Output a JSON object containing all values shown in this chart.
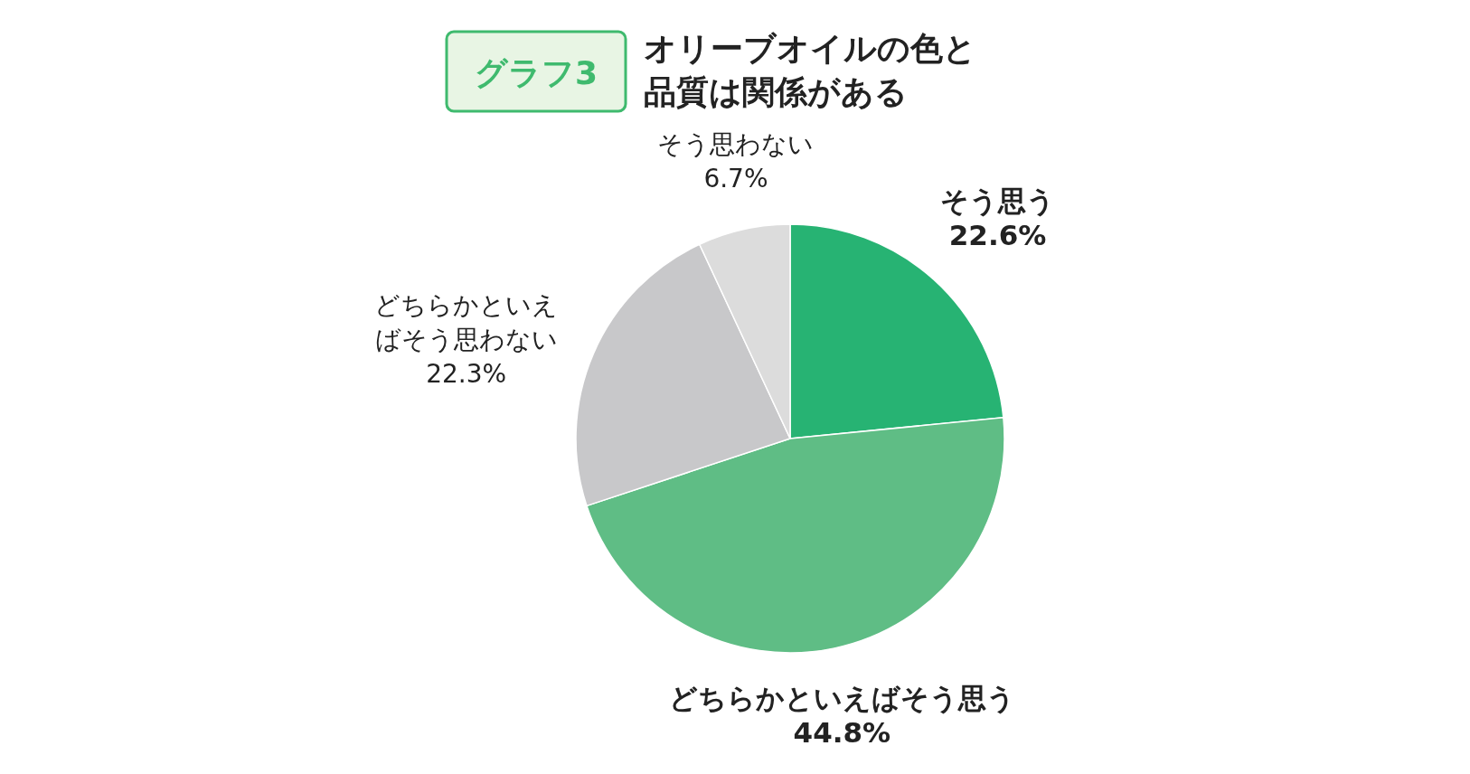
{
  "chart_data": {
    "type": "pie",
    "subtitle": "グラフ3",
    "title": "オリーブオイルの色と品質は関係がある",
    "categories": [
      "そう思う",
      "どちらかといえばそう思う",
      "どちらかといえばそう思わない",
      "そう思わない"
    ],
    "values": [
      22.6,
      44.8,
      22.3,
      6.7
    ],
    "value_labels": [
      "22.6%",
      "44.8%",
      "22.3%",
      "6.7%"
    ],
    "colors": [
      "#27b373",
      "#5fbd85",
      "#c8c8ca",
      "#dcdcdc"
    ]
  }
}
